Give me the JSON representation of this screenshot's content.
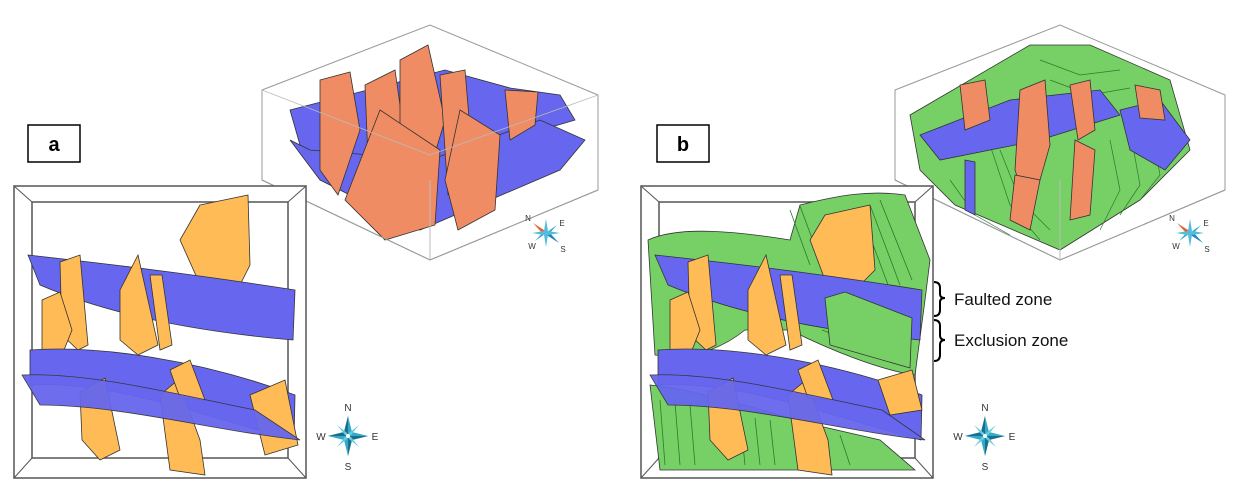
{
  "panels": [
    {
      "label": "a"
    },
    {
      "label": "b"
    }
  ],
  "annotations": [
    {
      "text": "Faulted zone"
    },
    {
      "text": "Exclusion zone"
    }
  ],
  "compass": {
    "n": "N",
    "e": "E",
    "s": "S",
    "w": "W"
  },
  "colors": {
    "blue_fault": "#6666ee",
    "orange_fault_3d": "#f08c64",
    "orange_fault_map": "#ffbb55",
    "green_horizon": "#77d066",
    "compass_cyan": "#33aacc",
    "compass_orange": "#dd6633"
  },
  "icons": [
    "compass-rose-icon"
  ]
}
